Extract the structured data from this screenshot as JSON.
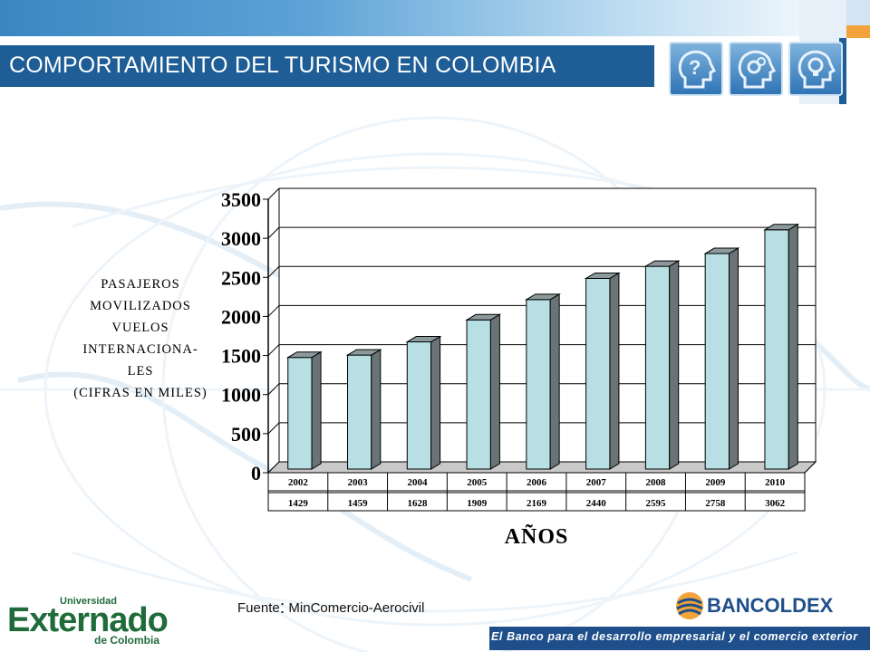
{
  "header": {
    "title": "COMPORTAMIENTO DEL TURISMO EN COLOMBIA"
  },
  "icons": [
    "question-head-icon",
    "gears-head-icon",
    "lightbulb-head-icon"
  ],
  "colors": {
    "title_bar": "#1e5d96",
    "bar_fill": "#b7dfe4",
    "bar_dark": "#6a7476",
    "logo_green": "#1f6b3a",
    "bancoldex_blue": "#1e4f8a"
  },
  "chart_data": {
    "type": "bar",
    "categories": [
      "2002",
      "2003",
      "2004",
      "2005",
      "2006",
      "2007",
      "2008",
      "2009",
      "2010"
    ],
    "values": [
      1429,
      1459,
      1628,
      1909,
      2169,
      2440,
      2595,
      2758,
      3062
    ],
    "title": "",
    "ylabel_lines": [
      "PASAJEROS",
      "MOVILIZADOS",
      "VUELOS",
      "INTERNACIONA-",
      "LES",
      "(CIFRAS EN MILES)"
    ],
    "xlabel": "AÑOS",
    "ylim": [
      0,
      3500
    ],
    "yticks": [
      0,
      500,
      1000,
      1500,
      2000,
      2500,
      3000,
      3500
    ],
    "grid": true,
    "data_table": true
  },
  "source": {
    "label": "Fuente",
    "colon": ":",
    "text": " MinComercio-Aerocivil"
  },
  "logos": {
    "externado": {
      "top": "Universidad",
      "main": "Externado",
      "bottom": "de Colombia"
    },
    "bancoldex": {
      "name": "BANCOLDEX",
      "tagline": "El Banco para el desarrollo empresarial y el comercio exterior"
    }
  }
}
